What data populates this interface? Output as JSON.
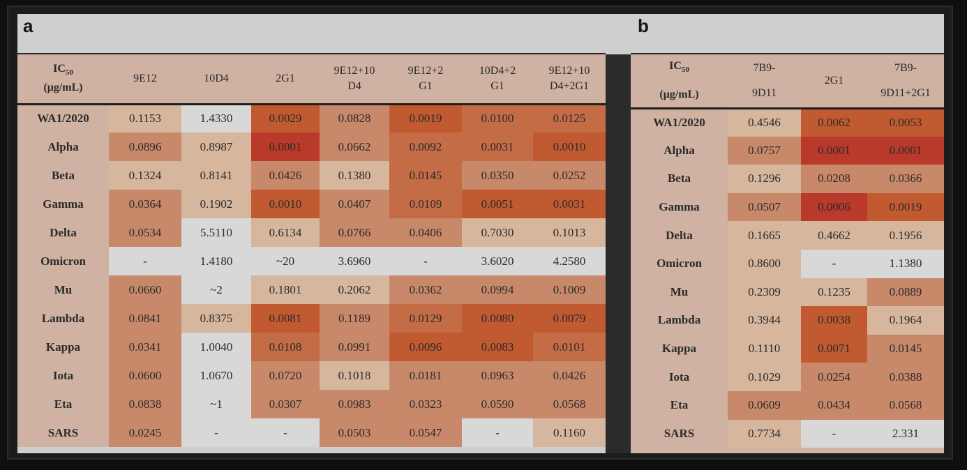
{
  "panels": [
    {
      "label": "a"
    },
    {
      "label": "b"
    }
  ],
  "chart_data": [
    {
      "type": "table",
      "panel": "a",
      "header_top": "IC",
      "header_sub": "50",
      "header_unit": "(μg/mL)",
      "columns": [
        [
          "9E12"
        ],
        [
          "10D4"
        ],
        [
          "2G1"
        ],
        [
          "9E12+10",
          "D4"
        ],
        [
          "9E12+2",
          "G1"
        ],
        [
          "10D4+2",
          "G1"
        ],
        [
          "9E12+10",
          "D4+2G1"
        ]
      ],
      "rows": [
        {
          "name": "WA1/2020",
          "values": [
            "0.1153",
            "1.4330",
            "0.0029",
            "0.0828",
            "0.0019",
            "0.0100",
            "0.0125"
          ]
        },
        {
          "name": "Alpha",
          "values": [
            "0.0896",
            "0.8987",
            "0.0001",
            "0.0662",
            "0.0092",
            "0.0031",
            "0.0010"
          ]
        },
        {
          "name": "Beta",
          "values": [
            "0.1324",
            "0.8141",
            "0.0426",
            "0.1380",
            "0.0145",
            "0.0350",
            "0.0252"
          ]
        },
        {
          "name": "Gamma",
          "values": [
            "0.0364",
            "0.1902",
            "0.0010",
            "0.0407",
            "0.0109",
            "0.0051",
            "0.0031"
          ]
        },
        {
          "name": "Delta",
          "values": [
            "0.0534",
            "5.5110",
            "0.6134",
            "0.0766",
            "0.0406",
            "0.7030",
            "0.1013"
          ]
        },
        {
          "name": "Omicron",
          "values": [
            "-",
            "1.4180",
            "~20",
            "3.6960",
            "-",
            "3.6020",
            "4.2580"
          ]
        },
        {
          "name": "Mu",
          "values": [
            "0.0660",
            "~2",
            "0.1801",
            "0.2062",
            "0.0362",
            "0.0994",
            "0.1009"
          ]
        },
        {
          "name": "Lambda",
          "values": [
            "0.0841",
            "0.8375",
            "0.0081",
            "0.1189",
            "0.0129",
            "0.0080",
            "0.0079"
          ]
        },
        {
          "name": "Kappa",
          "values": [
            "0.0341",
            "1.0040",
            "0.0108",
            "0.0991",
            "0.0096",
            "0.0083",
            "0.0101"
          ]
        },
        {
          "name": "Iota",
          "values": [
            "0.0600",
            "1.0670",
            "0.0720",
            "0.1018",
            "0.0181",
            "0.0963",
            "0.0426"
          ]
        },
        {
          "name": "Eta",
          "values": [
            "0.0838",
            "~1",
            "0.0307",
            "0.0983",
            "0.0323",
            "0.0590",
            "0.0568"
          ]
        },
        {
          "name": "SARS",
          "values": [
            "0.0245",
            "-",
            "-",
            "0.0503",
            "0.0547",
            "-",
            "0.1160"
          ]
        }
      ],
      "shade_levels": [
        [
          1,
          0,
          4,
          2,
          4,
          3,
          3
        ],
        [
          2,
          1,
          5,
          2,
          3,
          3,
          4
        ],
        [
          1,
          1,
          2,
          1,
          3,
          2,
          2
        ],
        [
          2,
          1,
          4,
          2,
          3,
          4,
          4
        ],
        [
          2,
          0,
          1,
          2,
          2,
          1,
          1
        ],
        [
          0,
          0,
          0,
          0,
          0,
          0,
          0
        ],
        [
          2,
          0,
          1,
          1,
          2,
          2,
          2
        ],
        [
          2,
          1,
          4,
          2,
          3,
          4,
          4
        ],
        [
          2,
          0,
          3,
          2,
          4,
          4,
          3
        ],
        [
          2,
          0,
          2,
          1,
          2,
          2,
          2
        ],
        [
          2,
          0,
          2,
          2,
          2,
          2,
          2
        ],
        [
          2,
          0,
          0,
          2,
          2,
          0,
          1
        ]
      ],
      "colors": [
        "#d8d8d8",
        "#d6b69d",
        "#c8886a",
        "#c46c45",
        "#c15a30",
        "#b9392b"
      ]
    },
    {
      "type": "table",
      "panel": "b",
      "header_top": "IC",
      "header_sub": "50",
      "header_unit": "(μg/mL)",
      "columns": [
        [
          "7B9-",
          "9D11"
        ],
        [
          "2G1"
        ],
        [
          "7B9-",
          "9D11+2G1"
        ]
      ],
      "rows": [
        {
          "name": "WA1/2020",
          "values": [
            "0.4546",
            "0.0062",
            "0.0053"
          ]
        },
        {
          "name": "Alpha",
          "values": [
            "0.0757",
            "0.0001",
            "0.0001"
          ]
        },
        {
          "name": "Beta",
          "values": [
            "0.1296",
            "0.0208",
            "0.0366"
          ]
        },
        {
          "name": "Gamma",
          "values": [
            "0.0507",
            "0.0006",
            "0.0019"
          ]
        },
        {
          "name": "Delta",
          "values": [
            "0.1665",
            "0.4662",
            "0.1956"
          ]
        },
        {
          "name": "Omicron",
          "values": [
            "0.8600",
            "-",
            "1.1380"
          ]
        },
        {
          "name": "Mu",
          "values": [
            "0.2309",
            "0.1235",
            "0.0889"
          ]
        },
        {
          "name": "Lambda",
          "values": [
            "0.3944",
            "0.0038",
            "0.1964"
          ]
        },
        {
          "name": "Kappa",
          "values": [
            "0.1110",
            "0.0071",
            "0.0145"
          ]
        },
        {
          "name": "Iota",
          "values": [
            "0.1029",
            "0.0254",
            "0.0388"
          ]
        },
        {
          "name": "Eta",
          "values": [
            "0.0609",
            "0.0434",
            "0.0568"
          ]
        },
        {
          "name": "SARS",
          "values": [
            "0.7734",
            "-",
            "2.331"
          ]
        }
      ],
      "shade_levels": [
        [
          1,
          4,
          4
        ],
        [
          2,
          5,
          5
        ],
        [
          1,
          2,
          2
        ],
        [
          2,
          5,
          4
        ],
        [
          1,
          1,
          1
        ],
        [
          1,
          0,
          0
        ],
        [
          1,
          1,
          2
        ],
        [
          1,
          4,
          1
        ],
        [
          1,
          4,
          2
        ],
        [
          1,
          2,
          2
        ],
        [
          2,
          2,
          2
        ],
        [
          1,
          0,
          0
        ]
      ],
      "colors": [
        "#d8d8d8",
        "#d6b69d",
        "#c8886a",
        "#c46c45",
        "#c15a30",
        "#b9392b"
      ]
    }
  ]
}
